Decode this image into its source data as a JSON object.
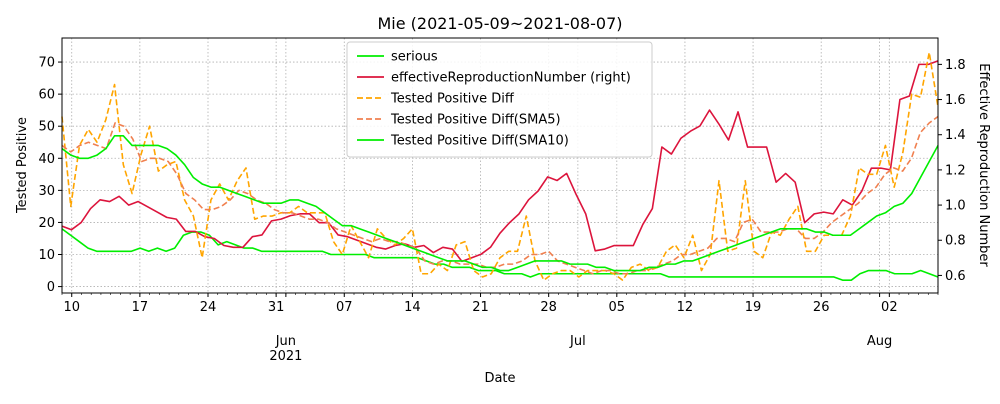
{
  "chart_data": {
    "type": "line",
    "title": "Mie (2021-05-09~2021-08-07)",
    "xlabel": "Date",
    "ylabel": "Tested Positive",
    "ylabel_right": "Effective Reproduction Number",
    "x_start": "2021-05-09",
    "x_end": "2021-08-07",
    "ylim": [
      -2,
      77.5
    ],
    "ylim_right": [
      0.5,
      1.95
    ],
    "yticks": [
      0,
      10,
      20,
      30,
      40,
      50,
      60,
      70
    ],
    "yticks_right": [
      0.6,
      0.8,
      1.0,
      1.2,
      1.4,
      1.6,
      1.8
    ],
    "xticks": [
      {
        "date": "2021-05-10",
        "label": "10"
      },
      {
        "date": "2021-05-17",
        "label": "17"
      },
      {
        "date": "2021-05-24",
        "label": "24"
      },
      {
        "date": "2021-05-31",
        "label": "31"
      },
      {
        "date": "2021-06-01",
        "label": "Jun\n2021"
      },
      {
        "date": "2021-06-07",
        "label": "07"
      },
      {
        "date": "2021-06-14",
        "label": "14"
      },
      {
        "date": "2021-06-21",
        "label": "21"
      },
      {
        "date": "2021-06-28",
        "label": "28"
      },
      {
        "date": "2021-07-01",
        "label": "Jul"
      },
      {
        "date": "2021-07-05",
        "label": "05"
      },
      {
        "date": "2021-07-12",
        "label": "12"
      },
      {
        "date": "2021-07-19",
        "label": "19"
      },
      {
        "date": "2021-07-26",
        "label": "26"
      },
      {
        "date": "2021-08-01",
        "label": "Aug"
      },
      {
        "date": "2021-08-02",
        "label": "02"
      }
    ],
    "grid": true,
    "legend_position": "top-center",
    "series": [
      {
        "name": "serious",
        "axis": "left",
        "color": "#00ee00",
        "style": "solid",
        "values": [
          18,
          16,
          14,
          12,
          11,
          11,
          11,
          11,
          11,
          12,
          11,
          12,
          11,
          12,
          16,
          17,
          17,
          16,
          13,
          14,
          13,
          12,
          12,
          11,
          11,
          11,
          11,
          11,
          11,
          11,
          11,
          10,
          10,
          10,
          10,
          10,
          9,
          9,
          9,
          9,
          9,
          9,
          8,
          7,
          7,
          6,
          6,
          6,
          5,
          5,
          5,
          4,
          4,
          4,
          3,
          4,
          4,
          4,
          4,
          4,
          4,
          4,
          4,
          4,
          4,
          4,
          4,
          4,
          4,
          4,
          3,
          3,
          3,
          3,
          3,
          3,
          3,
          3,
          3,
          3,
          3,
          3,
          3,
          3,
          3,
          3,
          3,
          3,
          3,
          3,
          2,
          2,
          4,
          5,
          5,
          5,
          4,
          4,
          4,
          5,
          4,
          3
        ]
      },
      {
        "name": "effectiveReproductionNumber (right)",
        "axis": "right",
        "color": "#dc143c",
        "style": "solid",
        "values": [
          0.88,
          0.86,
          0.9,
          0.98,
          1.03,
          1.02,
          1.05,
          1.0,
          1.02,
          0.99,
          0.96,
          0.93,
          0.92,
          0.85,
          0.85,
          0.82,
          0.81,
          0.77,
          0.76,
          0.76,
          0.82,
          0.83,
          0.91,
          0.92,
          0.94,
          0.95,
          0.95,
          0.9,
          0.9,
          0.83,
          0.82,
          0.8,
          0.78,
          0.76,
          0.75,
          0.77,
          0.78,
          0.76,
          0.77,
          0.73,
          0.76,
          0.75,
          0.68,
          0.7,
          0.72,
          0.76,
          0.84,
          0.9,
          0.95,
          1.03,
          1.08,
          1.16,
          1.14,
          1.18,
          1.06,
          0.95,
          0.74,
          0.75,
          0.77,
          0.77,
          0.77,
          0.89,
          0.98,
          1.33,
          1.29,
          1.38,
          1.42,
          1.45,
          1.54,
          1.46,
          1.37,
          1.53,
          1.33,
          1.33,
          1.33,
          1.13,
          1.18,
          1.13,
          0.9,
          0.95,
          0.96,
          0.95,
          1.03,
          1.0,
          1.08,
          1.21,
          1.21,
          1.2,
          1.6,
          1.62,
          1.8,
          1.8,
          1.82
        ]
      },
      {
        "name": "Tested Positive Diff",
        "axis": "left",
        "color": "#ffa500",
        "style": "dashed",
        "values": [
          53,
          25,
          44,
          49,
          45,
          52,
          63,
          38,
          29,
          41,
          50,
          36,
          38,
          39,
          27,
          22,
          9,
          27,
          32,
          27,
          33,
          37,
          21,
          22,
          22,
          23,
          23,
          25,
          23,
          23,
          23,
          14,
          10,
          19,
          14,
          9,
          18,
          15,
          13,
          15,
          18,
          4,
          4,
          7,
          5,
          13,
          14,
          5,
          3,
          4,
          9,
          11,
          11,
          22,
          8,
          2,
          4,
          5,
          5,
          3,
          5,
          5,
          5,
          4,
          2,
          6,
          7,
          5,
          6,
          11,
          13,
          9,
          16,
          5,
          10,
          33,
          11,
          12,
          33,
          11,
          9,
          17,
          16,
          21,
          25,
          11,
          11,
          16,
          16,
          16,
          22,
          37,
          35,
          35,
          44,
          31,
          42,
          60,
          59,
          73,
          56
        ]
      },
      {
        "name": "Tested Positive Diff(SMA5)",
        "axis": "left",
        "color": "#f08050",
        "style": "dashed",
        "values": [
          44,
          42,
          44,
          45,
          44,
          43,
          51,
          50,
          46,
          39,
          40,
          40,
          39,
          35,
          29,
          27,
          24,
          24,
          25,
          27,
          30,
          29,
          27,
          26,
          24,
          23,
          23,
          22,
          21,
          21,
          20,
          18,
          17,
          16,
          15,
          14,
          15,
          14,
          14,
          13,
          12,
          8,
          7,
          8,
          8,
          7,
          7,
          7,
          6,
          6,
          7,
          7,
          8,
          10,
          10,
          11,
          8,
          7,
          6,
          5,
          4,
          5,
          5,
          4,
          4,
          5,
          5,
          6,
          7,
          8,
          10,
          10,
          11,
          12,
          15,
          15,
          14,
          20,
          21,
          17,
          17,
          17,
          18,
          18,
          15,
          15,
          17,
          20,
          22,
          24,
          26,
          29,
          31,
          35,
          37,
          36,
          40,
          48,
          51,
          53
        ]
      },
      {
        "name": "Tested Positive Diff(SMA10)",
        "axis": "left",
        "color": "#00ee00",
        "style": "solid",
        "values": [
          43,
          41,
          40,
          40,
          41,
          43,
          47,
          47,
          44,
          44,
          44,
          44,
          43,
          41,
          38,
          34,
          32,
          31,
          31,
          30,
          29,
          28,
          27,
          26,
          26,
          26,
          27,
          27,
          26,
          25,
          23,
          21,
          19,
          19,
          18,
          17,
          16,
          15,
          14,
          13,
          12,
          11,
          10,
          9,
          8,
          8,
          8,
          7,
          6,
          6,
          5,
          5,
          6,
          7,
          8,
          8,
          8,
          8,
          7,
          7,
          7,
          6,
          6,
          5,
          5,
          5,
          5,
          6,
          6,
          7,
          7,
          8,
          8,
          9,
          10,
          11,
          12,
          13,
          14,
          15,
          16,
          17,
          18,
          18,
          18,
          18,
          17,
          17,
          16,
          16,
          16,
          18,
          20,
          22,
          23,
          25,
          26,
          29,
          34,
          39,
          44
        ]
      }
    ]
  }
}
